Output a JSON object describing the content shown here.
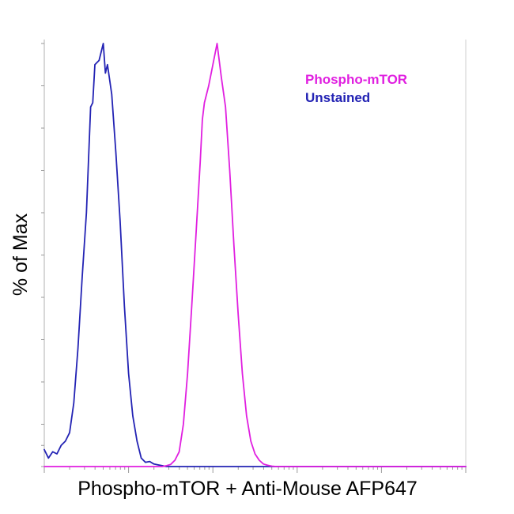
{
  "chart_data": {
    "type": "line",
    "title": "",
    "xlabel": "Phospho-mTOR + Anti-Mouse AFP647",
    "ylabel": "% of Max",
    "x_scale": "log",
    "xlim": [
      0,
      100
    ],
    "ylim": [
      0,
      100
    ],
    "legend_position": "top-right",
    "series": [
      {
        "name": "Phospho-mTOR",
        "color": "#e01fe0",
        "x": [
          0,
          28,
          29,
          30,
          31,
          32,
          33,
          34,
          35,
          36,
          37,
          37.5,
          38,
          39,
          40,
          41,
          42,
          43,
          44,
          45,
          46,
          47,
          48,
          49,
          50,
          51,
          52,
          53,
          54,
          55,
          100
        ],
        "y": [
          0,
          0,
          0.2,
          0.5,
          1.5,
          3.5,
          10,
          22,
          38,
          55,
          72,
          82,
          86,
          90,
          95,
          100,
          92,
          85,
          70,
          52,
          36,
          22,
          12,
          6,
          3,
          1.5,
          0.6,
          0.3,
          0.1,
          0,
          0
        ]
      },
      {
        "name": "Unstained",
        "color": "#2323b4",
        "x": [
          0,
          1,
          2,
          3,
          4,
          5,
          6,
          7,
          8,
          9,
          10,
          11,
          11.5,
          12,
          13,
          14,
          14.5,
          15,
          16,
          17,
          18,
          19,
          20,
          21,
          22,
          23,
          24,
          25,
          26,
          27,
          28,
          29,
          30,
          100
        ],
        "y": [
          4,
          2,
          3.5,
          3,
          5,
          6,
          8,
          15,
          28,
          45,
          60,
          85,
          86,
          95,
          96,
          100,
          93,
          95,
          88,
          74,
          58,
          38,
          22,
          12,
          6,
          2,
          1,
          1.2,
          0.6,
          0.4,
          0.2,
          0,
          0,
          0
        ]
      }
    ]
  },
  "legend": {
    "items": [
      {
        "label": "Phospho-mTOR",
        "color": "#e01fe0"
      },
      {
        "label": "Unstained",
        "color": "#2323b4"
      }
    ]
  }
}
